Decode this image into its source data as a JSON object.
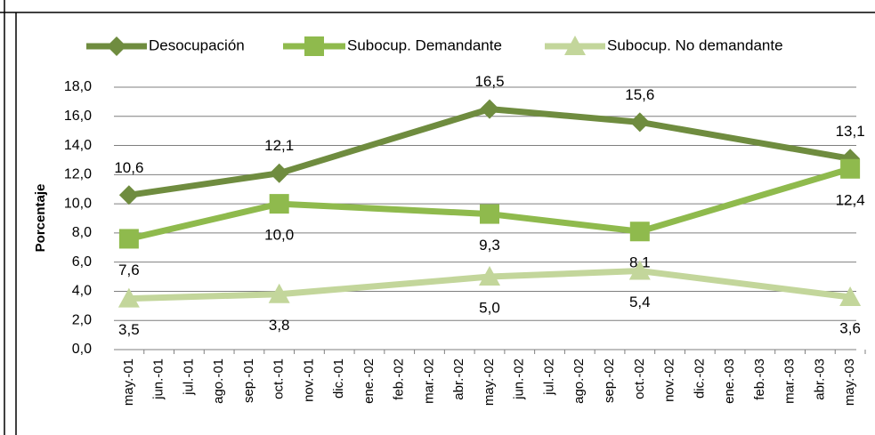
{
  "chart_data": {
    "type": "line",
    "y_axis_label": "Porcentaje",
    "categories": [
      "may.-01",
      "jun.-01",
      "jul.-01",
      "ago.-01",
      "sep.-01",
      "oct.-01",
      "nov.-01",
      "dic.-01",
      "ene.-02",
      "feb.-02",
      "mar.-02",
      "abr.-02",
      "may.-02",
      "jun.-02",
      "jul.-02",
      "ago.-02",
      "sep.-02",
      "oct.-02",
      "nov.-02",
      "dic.-02",
      "ene.-03",
      "feb.-03",
      "mar.-03",
      "abr.-03",
      "may.-03"
    ],
    "series": [
      {
        "name": "Desocupación",
        "color": "#6f8c3f",
        "marker": "diamond",
        "x": [
          "may.-01",
          "oct.-01",
          "may.-02",
          "oct.-02",
          "may.-03"
        ],
        "values": [
          10.6,
          12.1,
          16.5,
          15.6,
          13.1
        ],
        "value_labels": [
          "10,6",
          "12,1",
          "16,5",
          "15,6",
          "13,1"
        ]
      },
      {
        "name": "Subocup. Demandante",
        "color": "#8fba4d",
        "marker": "square",
        "x": [
          "may.-01",
          "oct.-01",
          "may.-02",
          "oct.-02",
          "may.-03"
        ],
        "values": [
          7.6,
          10.0,
          9.3,
          8.1,
          12.4
        ],
        "value_labels": [
          "7,6",
          "10,0",
          "9,3",
          "8,1",
          "12,4"
        ]
      },
      {
        "name": "Subocup. No demandante",
        "color": "#c3d69b",
        "marker": "triangle",
        "x": [
          "may.-01",
          "oct.-01",
          "may.-02",
          "oct.-02",
          "may.-03"
        ],
        "values": [
          3.5,
          3.8,
          5.0,
          5.4,
          3.6
        ],
        "value_labels": [
          "3,5",
          "3,8",
          "5,0",
          "5,4",
          "3,6"
        ]
      }
    ],
    "ylim": [
      0,
      18
    ],
    "yticks": [
      {
        "value": 0,
        "label": "0,0"
      },
      {
        "value": 2,
        "label": "2,0"
      },
      {
        "value": 4,
        "label": "4,0"
      },
      {
        "value": 6,
        "label": "6,0"
      },
      {
        "value": 8,
        "label": "8,0"
      },
      {
        "value": 10,
        "label": "10,0"
      },
      {
        "value": 12,
        "label": "12,0"
      },
      {
        "value": 14,
        "label": "14,0"
      },
      {
        "value": 16,
        "label": "16,0"
      },
      {
        "value": 18,
        "label": "18,0"
      }
    ],
    "grid": true
  }
}
